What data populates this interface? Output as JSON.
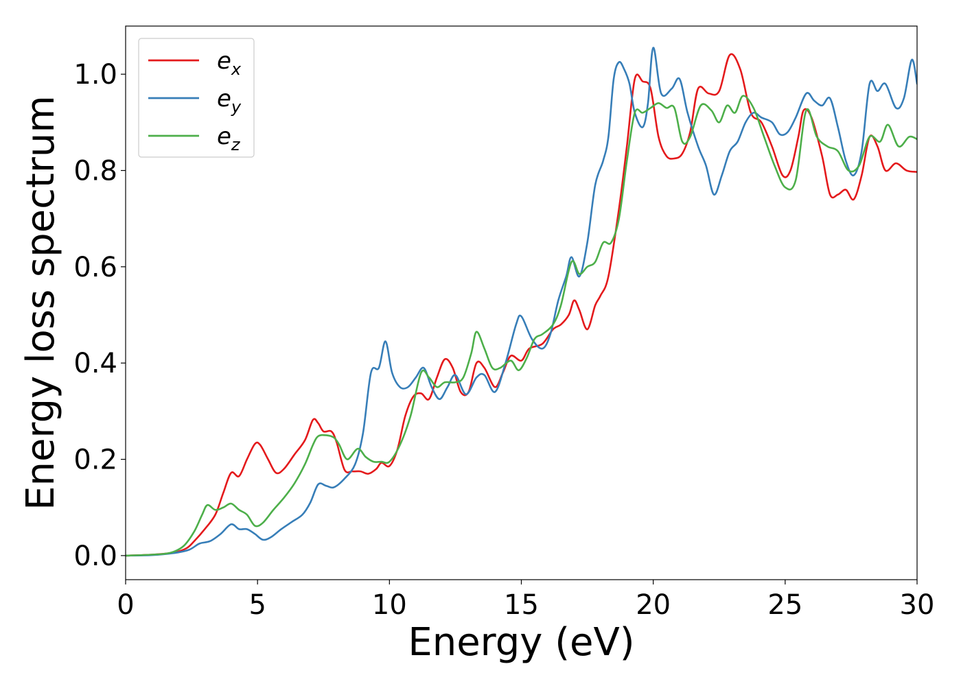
{
  "chart_data": {
    "type": "line",
    "title": "",
    "xlabel": "Energy (eV)",
    "ylabel": "Energy loss spectrum",
    "xlim": [
      0,
      30
    ],
    "ylim": [
      -0.05,
      1.1
    ],
    "xticks": [
      0,
      5,
      10,
      15,
      20,
      25,
      30
    ],
    "yticks": [
      0.0,
      0.2,
      0.4,
      0.6,
      0.8,
      1.0
    ],
    "xtick_labels": [
      "0",
      "5",
      "10",
      "15",
      "20",
      "25",
      "30"
    ],
    "ytick_labels": [
      "0.0",
      "0.2",
      "0.4",
      "0.6",
      "0.8",
      "1.0"
    ],
    "grid": false,
    "legend_position": "top-left",
    "series": [
      {
        "name": "e",
        "subscript": "x",
        "color": "#e41a1c",
        "points": [
          [
            0,
            0
          ],
          [
            1,
            0.002
          ],
          [
            1.8,
            0.006
          ],
          [
            2.3,
            0.015
          ],
          [
            2.6,
            0.03
          ],
          [
            3.0,
            0.055
          ],
          [
            3.4,
            0.085
          ],
          [
            3.7,
            0.13
          ],
          [
            4.0,
            0.172
          ],
          [
            4.3,
            0.165
          ],
          [
            4.6,
            0.2
          ],
          [
            4.9,
            0.232
          ],
          [
            5.1,
            0.23
          ],
          [
            5.4,
            0.2
          ],
          [
            5.7,
            0.172
          ],
          [
            6.0,
            0.18
          ],
          [
            6.4,
            0.21
          ],
          [
            6.8,
            0.24
          ],
          [
            7.1,
            0.282
          ],
          [
            7.3,
            0.275
          ],
          [
            7.5,
            0.258
          ],
          [
            7.8,
            0.258
          ],
          [
            8.0,
            0.235
          ],
          [
            8.3,
            0.178
          ],
          [
            8.6,
            0.175
          ],
          [
            8.9,
            0.175
          ],
          [
            9.2,
            0.17
          ],
          [
            9.5,
            0.18
          ],
          [
            9.7,
            0.193
          ],
          [
            10.0,
            0.186
          ],
          [
            10.3,
            0.22
          ],
          [
            10.6,
            0.29
          ],
          [
            10.9,
            0.33
          ],
          [
            11.2,
            0.337
          ],
          [
            11.5,
            0.325
          ],
          [
            11.8,
            0.37
          ],
          [
            12.1,
            0.408
          ],
          [
            12.4,
            0.39
          ],
          [
            12.7,
            0.34
          ],
          [
            13.0,
            0.34
          ],
          [
            13.3,
            0.4
          ],
          [
            13.6,
            0.39
          ],
          [
            14.0,
            0.35
          ],
          [
            14.3,
            0.38
          ],
          [
            14.6,
            0.415
          ],
          [
            15.0,
            0.405
          ],
          [
            15.3,
            0.43
          ],
          [
            15.8,
            0.44
          ],
          [
            16.2,
            0.47
          ],
          [
            16.5,
            0.48
          ],
          [
            16.8,
            0.5
          ],
          [
            17.0,
            0.53
          ],
          [
            17.2,
            0.51
          ],
          [
            17.5,
            0.47
          ],
          [
            17.8,
            0.52
          ],
          [
            18.0,
            0.54
          ],
          [
            18.3,
            0.58
          ],
          [
            18.7,
            0.72
          ],
          [
            19.0,
            0.85
          ],
          [
            19.3,
            0.99
          ],
          [
            19.6,
            0.985
          ],
          [
            19.9,
            0.97
          ],
          [
            20.2,
            0.87
          ],
          [
            20.5,
            0.83
          ],
          [
            20.8,
            0.825
          ],
          [
            21.1,
            0.835
          ],
          [
            21.4,
            0.88
          ],
          [
            21.7,
            0.97
          ],
          [
            22.1,
            0.96
          ],
          [
            22.5,
            0.965
          ],
          [
            22.9,
            1.04
          ],
          [
            23.3,
            1.01
          ],
          [
            23.7,
            0.92
          ],
          [
            24.1,
            0.9
          ],
          [
            24.5,
            0.85
          ],
          [
            24.9,
            0.79
          ],
          [
            25.2,
            0.8
          ],
          [
            25.5,
            0.87
          ],
          [
            25.7,
            0.925
          ],
          [
            26.0,
            0.91
          ],
          [
            26.4,
            0.83
          ],
          [
            26.7,
            0.75
          ],
          [
            27.0,
            0.75
          ],
          [
            27.3,
            0.76
          ],
          [
            27.6,
            0.74
          ],
          [
            27.9,
            0.79
          ],
          [
            28.2,
            0.87
          ],
          [
            28.5,
            0.85
          ],
          [
            28.8,
            0.8
          ],
          [
            29.2,
            0.815
          ],
          [
            29.6,
            0.8
          ],
          [
            30,
            0.797
          ]
        ]
      },
      {
        "name": "e",
        "subscript": "y",
        "color": "#377eb8",
        "points": [
          [
            0,
            0
          ],
          [
            1,
            0.001
          ],
          [
            1.8,
            0.005
          ],
          [
            2.4,
            0.012
          ],
          [
            2.8,
            0.025
          ],
          [
            3.2,
            0.03
          ],
          [
            3.6,
            0.045
          ],
          [
            4.0,
            0.065
          ],
          [
            4.3,
            0.055
          ],
          [
            4.6,
            0.055
          ],
          [
            4.9,
            0.045
          ],
          [
            5.2,
            0.033
          ],
          [
            5.5,
            0.038
          ],
          [
            5.9,
            0.055
          ],
          [
            6.3,
            0.07
          ],
          [
            6.7,
            0.085
          ],
          [
            7.0,
            0.11
          ],
          [
            7.3,
            0.148
          ],
          [
            7.6,
            0.145
          ],
          [
            7.9,
            0.142
          ],
          [
            8.3,
            0.16
          ],
          [
            8.7,
            0.19
          ],
          [
            9.0,
            0.255
          ],
          [
            9.3,
            0.38
          ],
          [
            9.6,
            0.39
          ],
          [
            9.85,
            0.445
          ],
          [
            10.1,
            0.38
          ],
          [
            10.4,
            0.35
          ],
          [
            10.7,
            0.35
          ],
          [
            11.0,
            0.37
          ],
          [
            11.3,
            0.39
          ],
          [
            11.6,
            0.35
          ],
          [
            11.9,
            0.325
          ],
          [
            12.2,
            0.35
          ],
          [
            12.5,
            0.375
          ],
          [
            12.9,
            0.335
          ],
          [
            13.3,
            0.37
          ],
          [
            13.6,
            0.375
          ],
          [
            14.0,
            0.34
          ],
          [
            14.4,
            0.4
          ],
          [
            14.8,
            0.48
          ],
          [
            15.0,
            0.497
          ],
          [
            15.4,
            0.45
          ],
          [
            15.8,
            0.43
          ],
          [
            16.1,
            0.46
          ],
          [
            16.4,
            0.53
          ],
          [
            16.7,
            0.58
          ],
          [
            16.9,
            0.62
          ],
          [
            17.2,
            0.58
          ],
          [
            17.5,
            0.65
          ],
          [
            17.8,
            0.77
          ],
          [
            18.1,
            0.82
          ],
          [
            18.3,
            0.87
          ],
          [
            18.5,
            0.99
          ],
          [
            18.7,
            1.025
          ],
          [
            18.9,
            1.01
          ],
          [
            19.1,
            0.98
          ],
          [
            19.3,
            0.92
          ],
          [
            19.6,
            0.89
          ],
          [
            19.8,
            0.94
          ],
          [
            20.0,
            1.055
          ],
          [
            20.3,
            0.96
          ],
          [
            20.7,
            0.97
          ],
          [
            21.0,
            0.99
          ],
          [
            21.3,
            0.92
          ],
          [
            21.7,
            0.85
          ],
          [
            22.0,
            0.81
          ],
          [
            22.3,
            0.75
          ],
          [
            22.6,
            0.79
          ],
          [
            22.9,
            0.84
          ],
          [
            23.2,
            0.86
          ],
          [
            23.5,
            0.9
          ],
          [
            23.8,
            0.92
          ],
          [
            24.1,
            0.91
          ],
          [
            24.5,
            0.9
          ],
          [
            24.8,
            0.875
          ],
          [
            25.1,
            0.88
          ],
          [
            25.4,
            0.91
          ],
          [
            25.8,
            0.96
          ],
          [
            26.1,
            0.945
          ],
          [
            26.4,
            0.935
          ],
          [
            26.7,
            0.95
          ],
          [
            27.0,
            0.89
          ],
          [
            27.3,
            0.82
          ],
          [
            27.6,
            0.79
          ],
          [
            27.9,
            0.84
          ],
          [
            28.2,
            0.98
          ],
          [
            28.5,
            0.965
          ],
          [
            28.8,
            0.98
          ],
          [
            29.2,
            0.93
          ],
          [
            29.5,
            0.95
          ],
          [
            29.8,
            1.03
          ],
          [
            30,
            0.98
          ]
        ]
      },
      {
        "name": "e",
        "subscript": "z",
        "color": "#4daf4a",
        "points": [
          [
            0,
            0
          ],
          [
            1,
            0.002
          ],
          [
            1.7,
            0.006
          ],
          [
            2.2,
            0.02
          ],
          [
            2.6,
            0.05
          ],
          [
            2.9,
            0.085
          ],
          [
            3.1,
            0.105
          ],
          [
            3.4,
            0.095
          ],
          [
            3.7,
            0.1
          ],
          [
            4.0,
            0.108
          ],
          [
            4.3,
            0.095
          ],
          [
            4.6,
            0.085
          ],
          [
            4.9,
            0.062
          ],
          [
            5.2,
            0.068
          ],
          [
            5.6,
            0.095
          ],
          [
            6.0,
            0.12
          ],
          [
            6.4,
            0.15
          ],
          [
            6.8,
            0.19
          ],
          [
            7.1,
            0.23
          ],
          [
            7.3,
            0.248
          ],
          [
            7.6,
            0.25
          ],
          [
            7.9,
            0.245
          ],
          [
            8.1,
            0.23
          ],
          [
            8.4,
            0.2
          ],
          [
            8.8,
            0.222
          ],
          [
            9.1,
            0.205
          ],
          [
            9.4,
            0.195
          ],
          [
            9.7,
            0.195
          ],
          [
            10.0,
            0.195
          ],
          [
            10.4,
            0.23
          ],
          [
            10.8,
            0.29
          ],
          [
            11.2,
            0.38
          ],
          [
            11.5,
            0.37
          ],
          [
            11.8,
            0.35
          ],
          [
            12.1,
            0.36
          ],
          [
            12.5,
            0.36
          ],
          [
            12.8,
            0.37
          ],
          [
            13.1,
            0.42
          ],
          [
            13.3,
            0.465
          ],
          [
            13.6,
            0.43
          ],
          [
            13.9,
            0.39
          ],
          [
            14.2,
            0.39
          ],
          [
            14.6,
            0.405
          ],
          [
            14.9,
            0.385
          ],
          [
            15.2,
            0.41
          ],
          [
            15.5,
            0.45
          ],
          [
            15.8,
            0.46
          ],
          [
            16.2,
            0.48
          ],
          [
            16.5,
            0.52
          ],
          [
            16.9,
            0.61
          ],
          [
            17.2,
            0.585
          ],
          [
            17.5,
            0.6
          ],
          [
            17.8,
            0.61
          ],
          [
            18.1,
            0.65
          ],
          [
            18.4,
            0.65
          ],
          [
            18.7,
            0.7
          ],
          [
            19.0,
            0.82
          ],
          [
            19.3,
            0.92
          ],
          [
            19.6,
            0.92
          ],
          [
            19.9,
            0.93
          ],
          [
            20.2,
            0.94
          ],
          [
            20.5,
            0.93
          ],
          [
            20.8,
            0.93
          ],
          [
            21.1,
            0.86
          ],
          [
            21.4,
            0.87
          ],
          [
            21.8,
            0.935
          ],
          [
            22.2,
            0.925
          ],
          [
            22.5,
            0.9
          ],
          [
            22.8,
            0.935
          ],
          [
            23.1,
            0.92
          ],
          [
            23.4,
            0.955
          ],
          [
            23.8,
            0.93
          ],
          [
            24.2,
            0.87
          ],
          [
            24.6,
            0.81
          ],
          [
            25.0,
            0.765
          ],
          [
            25.4,
            0.78
          ],
          [
            25.8,
            0.925
          ],
          [
            26.2,
            0.87
          ],
          [
            26.6,
            0.85
          ],
          [
            27.0,
            0.84
          ],
          [
            27.4,
            0.8
          ],
          [
            27.8,
            0.81
          ],
          [
            28.2,
            0.87
          ],
          [
            28.6,
            0.86
          ],
          [
            28.9,
            0.895
          ],
          [
            29.3,
            0.85
          ],
          [
            29.7,
            0.87
          ],
          [
            30,
            0.865
          ]
        ]
      }
    ]
  }
}
